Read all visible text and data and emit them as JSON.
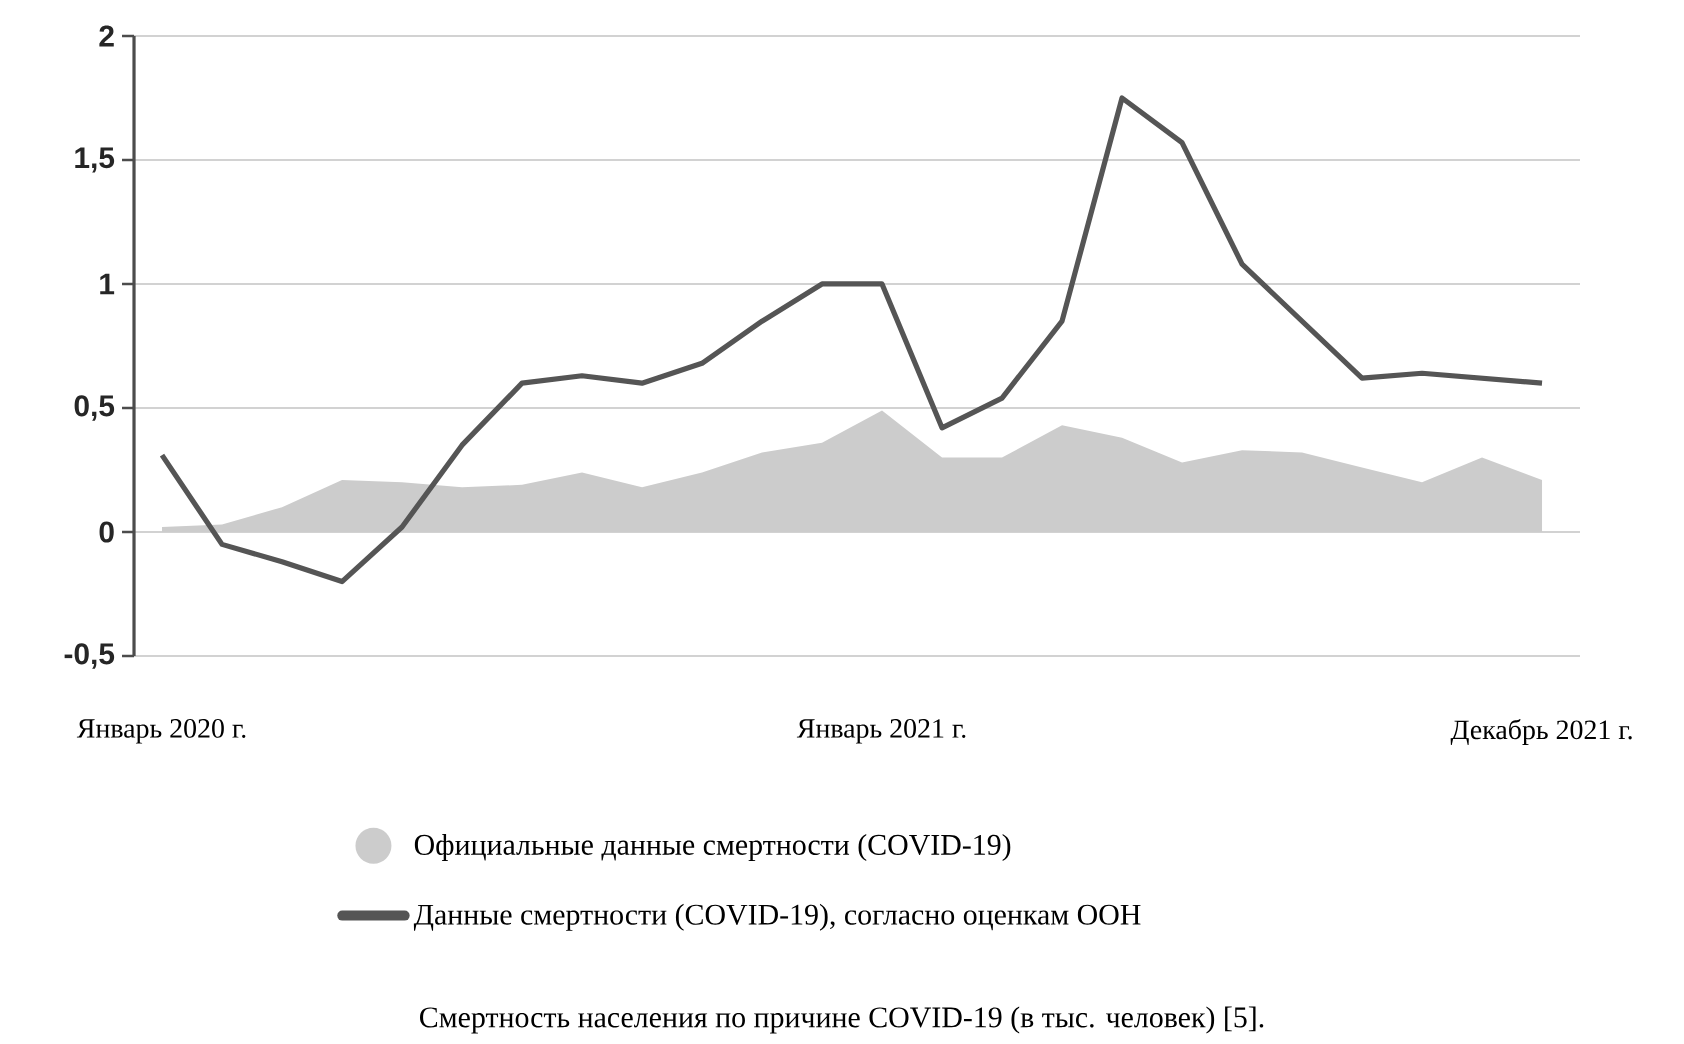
{
  "chart_data": {
    "type": "line",
    "categories": [
      "Январь 2020 г.",
      null,
      null,
      null,
      null,
      null,
      null,
      null,
      null,
      null,
      null,
      null,
      "Январь 2021 г.",
      null,
      null,
      null,
      null,
      null,
      null,
      null,
      null,
      null,
      null,
      "Декабрь 2021 г."
    ],
    "series": [
      {
        "name": "Официальные данные смертности (COVID-19)",
        "type": "area",
        "color": "#cccccc",
        "values": [
          0.02,
          0.03,
          0.1,
          0.21,
          0.2,
          0.18,
          0.19,
          0.24,
          0.18,
          0.24,
          0.32,
          0.36,
          0.49,
          0.3,
          0.3,
          0.43,
          0.38,
          0.28,
          0.33,
          0.32,
          0.26,
          0.2,
          0.3,
          0.21
        ]
      },
      {
        "name": "Данные смертности (COVID-19), согласно оценкам ООН",
        "color": "#555555",
        "values": [
          0.31,
          -0.05,
          -0.12,
          -0.2,
          0.02,
          0.35,
          0.6,
          0.63,
          0.6,
          0.68,
          0.85,
          1.0,
          1.0,
          0.42,
          0.54,
          0.85,
          1.75,
          1.57,
          1.08,
          0.85,
          0.62,
          0.64,
          0.62,
          0.6
        ]
      }
    ],
    "ylim": [
      -0.5,
      2
    ],
    "yticks": [
      {
        "value": -0.5,
        "label": "-0,5"
      },
      0,
      {
        "value": 0.5,
        "label": "0,5"
      },
      1,
      {
        "value": 1.5,
        "label": "1,5"
      },
      2
    ],
    "grid": "y",
    "legend": "bottom",
    "marker": "none",
    "annotations": [
      "Смертность населения по причине COVID-19 (в тыс. человек) [5]."
    ]
  }
}
